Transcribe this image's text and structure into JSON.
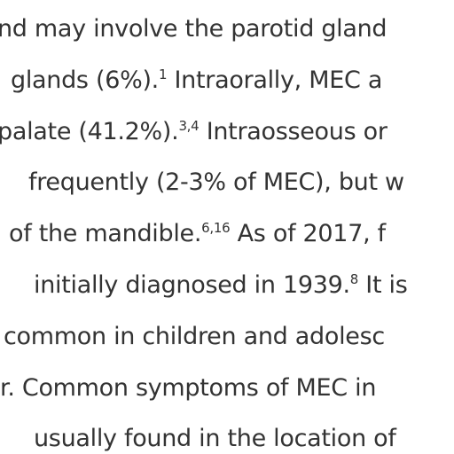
{
  "lines": [
    {
      "text": "nd may involve the parotid gland"
    },
    {
      "text": "glands (6%).",
      "sup": "1",
      "after": " Intraorally, MEC a"
    },
    {
      "text": "palate (41.2%).",
      "sup": "3,4",
      "after": " Intraosseous or"
    },
    {
      "text": "frequently (2-3% of MEC), but w"
    },
    {
      "text": "of the mandible.",
      "sup": "6,16",
      "after": " As of 2017, f"
    },
    {
      "text": "initially diagnosed in 1939.",
      "sup": "8",
      "after": " It is"
    },
    {
      "text": "common in children and adolesc"
    },
    {
      "text": "r. Common symptoms of MEC in"
    },
    {
      "text": "usually found in the location of"
    }
  ]
}
